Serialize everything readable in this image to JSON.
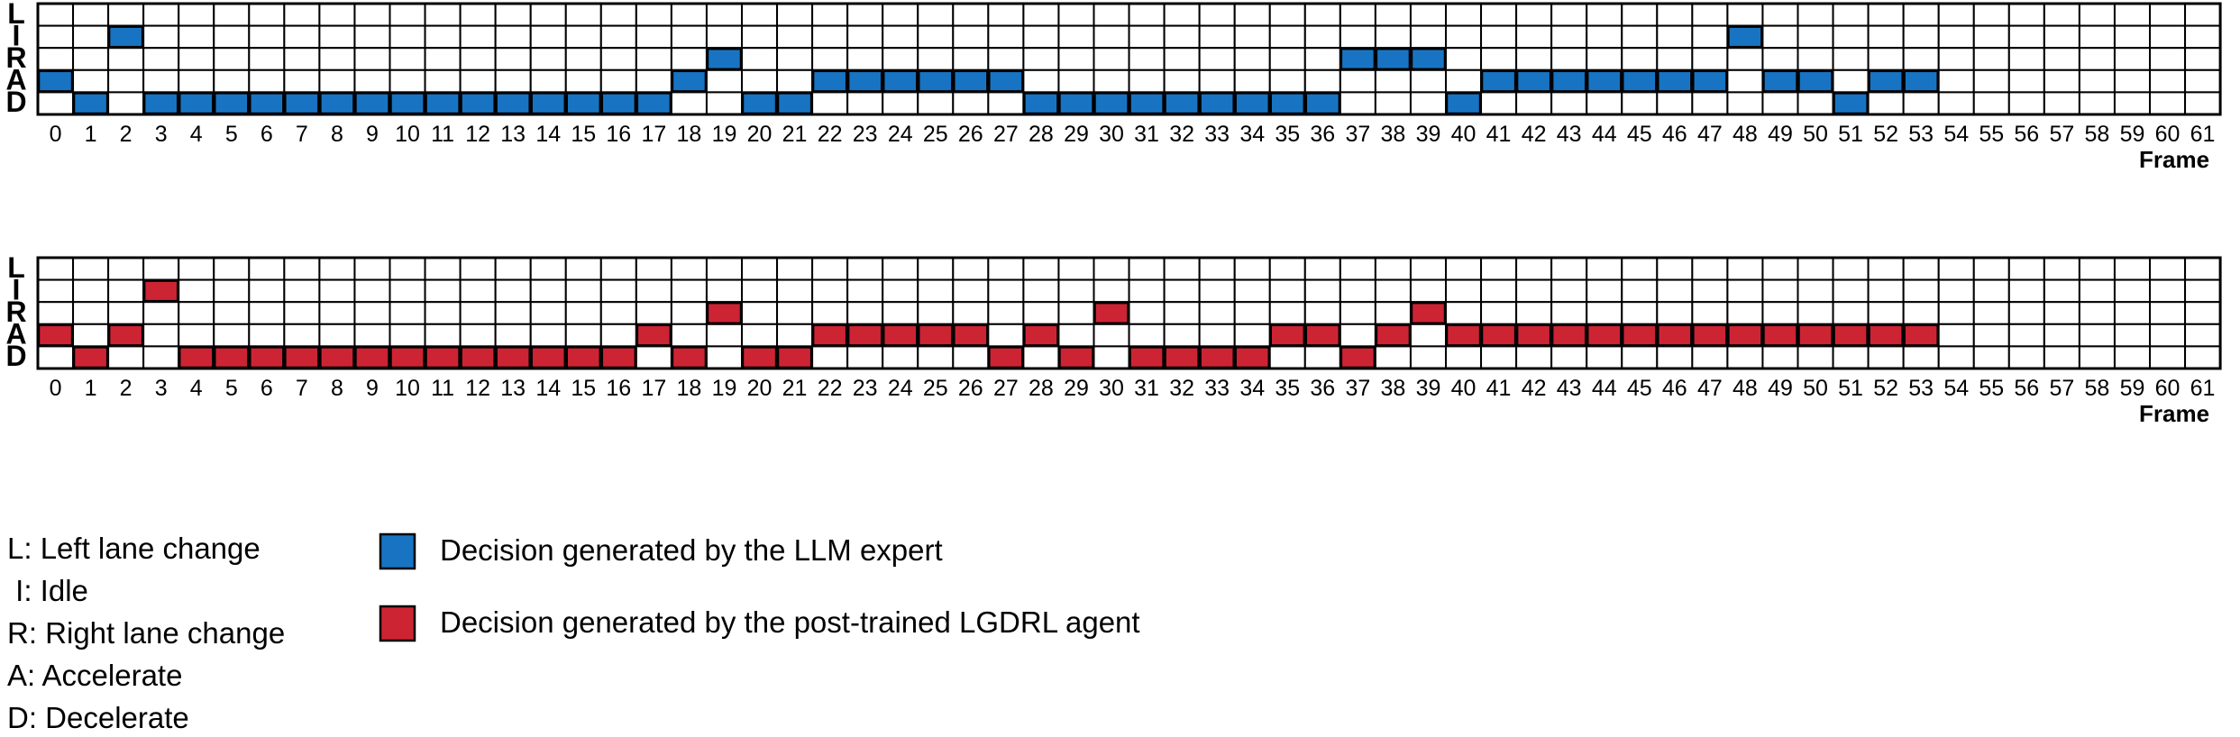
{
  "chart_data": [
    {
      "type": "heatmap",
      "name": "LLM expert",
      "color": "#1874C2",
      "rows": [
        "L",
        "I",
        "R",
        "A",
        "D"
      ],
      "frames": [
        0,
        1,
        2,
        3,
        4,
        5,
        6,
        7,
        8,
        9,
        10,
        11,
        12,
        13,
        14,
        15,
        16,
        17,
        18,
        19,
        20,
        21,
        22,
        23,
        24,
        25,
        26,
        27,
        28,
        29,
        30,
        31,
        32,
        33,
        34,
        35,
        36,
        37,
        38,
        39,
        40,
        41,
        42,
        43,
        44,
        45,
        46,
        47,
        48,
        49,
        50,
        51,
        52,
        53,
        54,
        55,
        56,
        57,
        58,
        59,
        60,
        61
      ],
      "xlabel": "Frame",
      "decisions": [
        "A",
        "D",
        "I",
        "D",
        "D",
        "D",
        "D",
        "D",
        "D",
        "D",
        "D",
        "D",
        "D",
        "D",
        "D",
        "D",
        "D",
        "D",
        "A",
        "R",
        "D",
        "D",
        "A",
        "A",
        "A",
        "A",
        "A",
        "A",
        "D",
        "D",
        "D",
        "D",
        "D",
        "D",
        "D",
        "D",
        "D",
        "R",
        "R",
        "R",
        "D",
        "A",
        "A",
        "A",
        "A",
        "A",
        "A",
        "A",
        "I",
        "A",
        "A",
        "D",
        "A",
        "A",
        null,
        null,
        null,
        null,
        null,
        null,
        null,
        null
      ]
    },
    {
      "type": "heatmap",
      "name": "post-trained LGDRL agent",
      "color": "#CC2433",
      "rows": [
        "L",
        "I",
        "R",
        "A",
        "D"
      ],
      "frames": [
        0,
        1,
        2,
        3,
        4,
        5,
        6,
        7,
        8,
        9,
        10,
        11,
        12,
        13,
        14,
        15,
        16,
        17,
        18,
        19,
        20,
        21,
        22,
        23,
        24,
        25,
        26,
        27,
        28,
        29,
        30,
        31,
        32,
        33,
        34,
        35,
        36,
        37,
        38,
        39,
        40,
        41,
        42,
        43,
        44,
        45,
        46,
        47,
        48,
        49,
        50,
        51,
        52,
        53,
        54,
        55,
        56,
        57,
        58,
        59,
        60,
        61
      ],
      "xlabel": "Frame",
      "decisions": [
        "A",
        "D",
        "A",
        "I",
        "D",
        "D",
        "D",
        "D",
        "D",
        "D",
        "D",
        "D",
        "D",
        "D",
        "D",
        "D",
        "D",
        "A",
        "D",
        "R",
        "D",
        "D",
        "A",
        "A",
        "A",
        "A",
        "A",
        "D",
        "A",
        "D",
        "R",
        "D",
        "D",
        "D",
        "D",
        "A",
        "A",
        "D",
        "A",
        "R",
        "A",
        "A",
        "A",
        "A",
        "A",
        "A",
        "A",
        "A",
        "A",
        "A",
        "A",
        "A",
        "A",
        "A",
        null,
        null,
        null,
        null,
        null,
        null,
        null,
        null
      ]
    }
  ],
  "legend": {
    "codes": [
      "L: Left lane change",
      " I: Idle",
      "R: Right lane change",
      "A: Accelerate",
      "D: Decelerate"
    ],
    "entries": [
      {
        "label": "Decision generated by the LLM expert",
        "color": "#1874C2"
      },
      {
        "label": "Decision generated by the post-trained LGDRL agent",
        "color": "#CC2433"
      }
    ]
  }
}
